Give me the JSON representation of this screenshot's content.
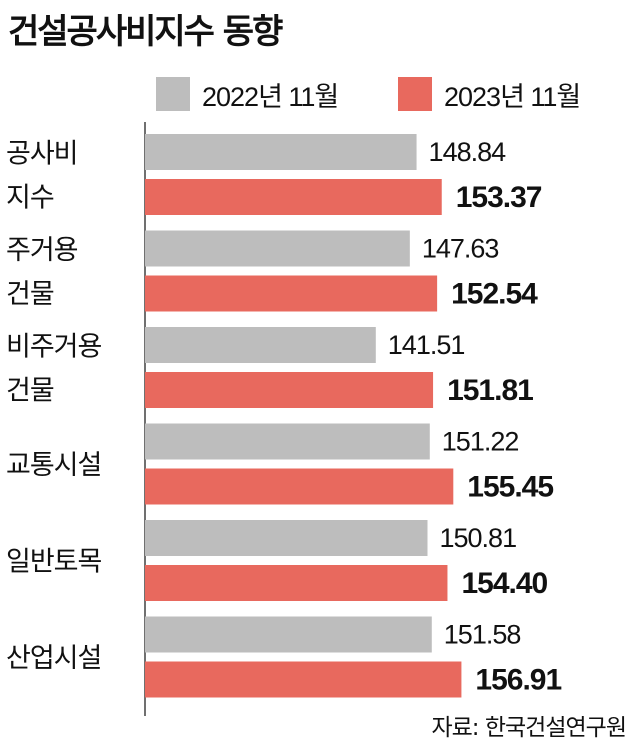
{
  "chart_data": {
    "type": "bar",
    "orientation": "horizontal",
    "title": "건설공사비지수 동향",
    "categories": [
      [
        "공사비",
        "지수"
      ],
      [
        "주거용",
        "건물"
      ],
      [
        "비주거용",
        "건물"
      ],
      [
        "교통시설"
      ],
      [
        "일반토목"
      ],
      [
        "산업시설"
      ]
    ],
    "series": [
      {
        "name": "2022년 11월",
        "color": "#bdbdbd",
        "values": [
          148.84,
          147.63,
          141.51,
          151.22,
          150.81,
          151.58
        ],
        "labels": [
          "148.84",
          "147.63",
          "141.51",
          "151.22",
          "150.81",
          "151.58"
        ]
      },
      {
        "name": "2023년 11월",
        "color": "#e8695e",
        "values": [
          153.37,
          152.54,
          151.81,
          155.45,
          154.4,
          156.91
        ],
        "labels": [
          "153.37",
          "152.54",
          "151.81",
          "155.45",
          "154.40",
          "156.91"
        ]
      }
    ],
    "source": "자료: 한국건설연구원",
    "grid": false,
    "legend": "top"
  }
}
